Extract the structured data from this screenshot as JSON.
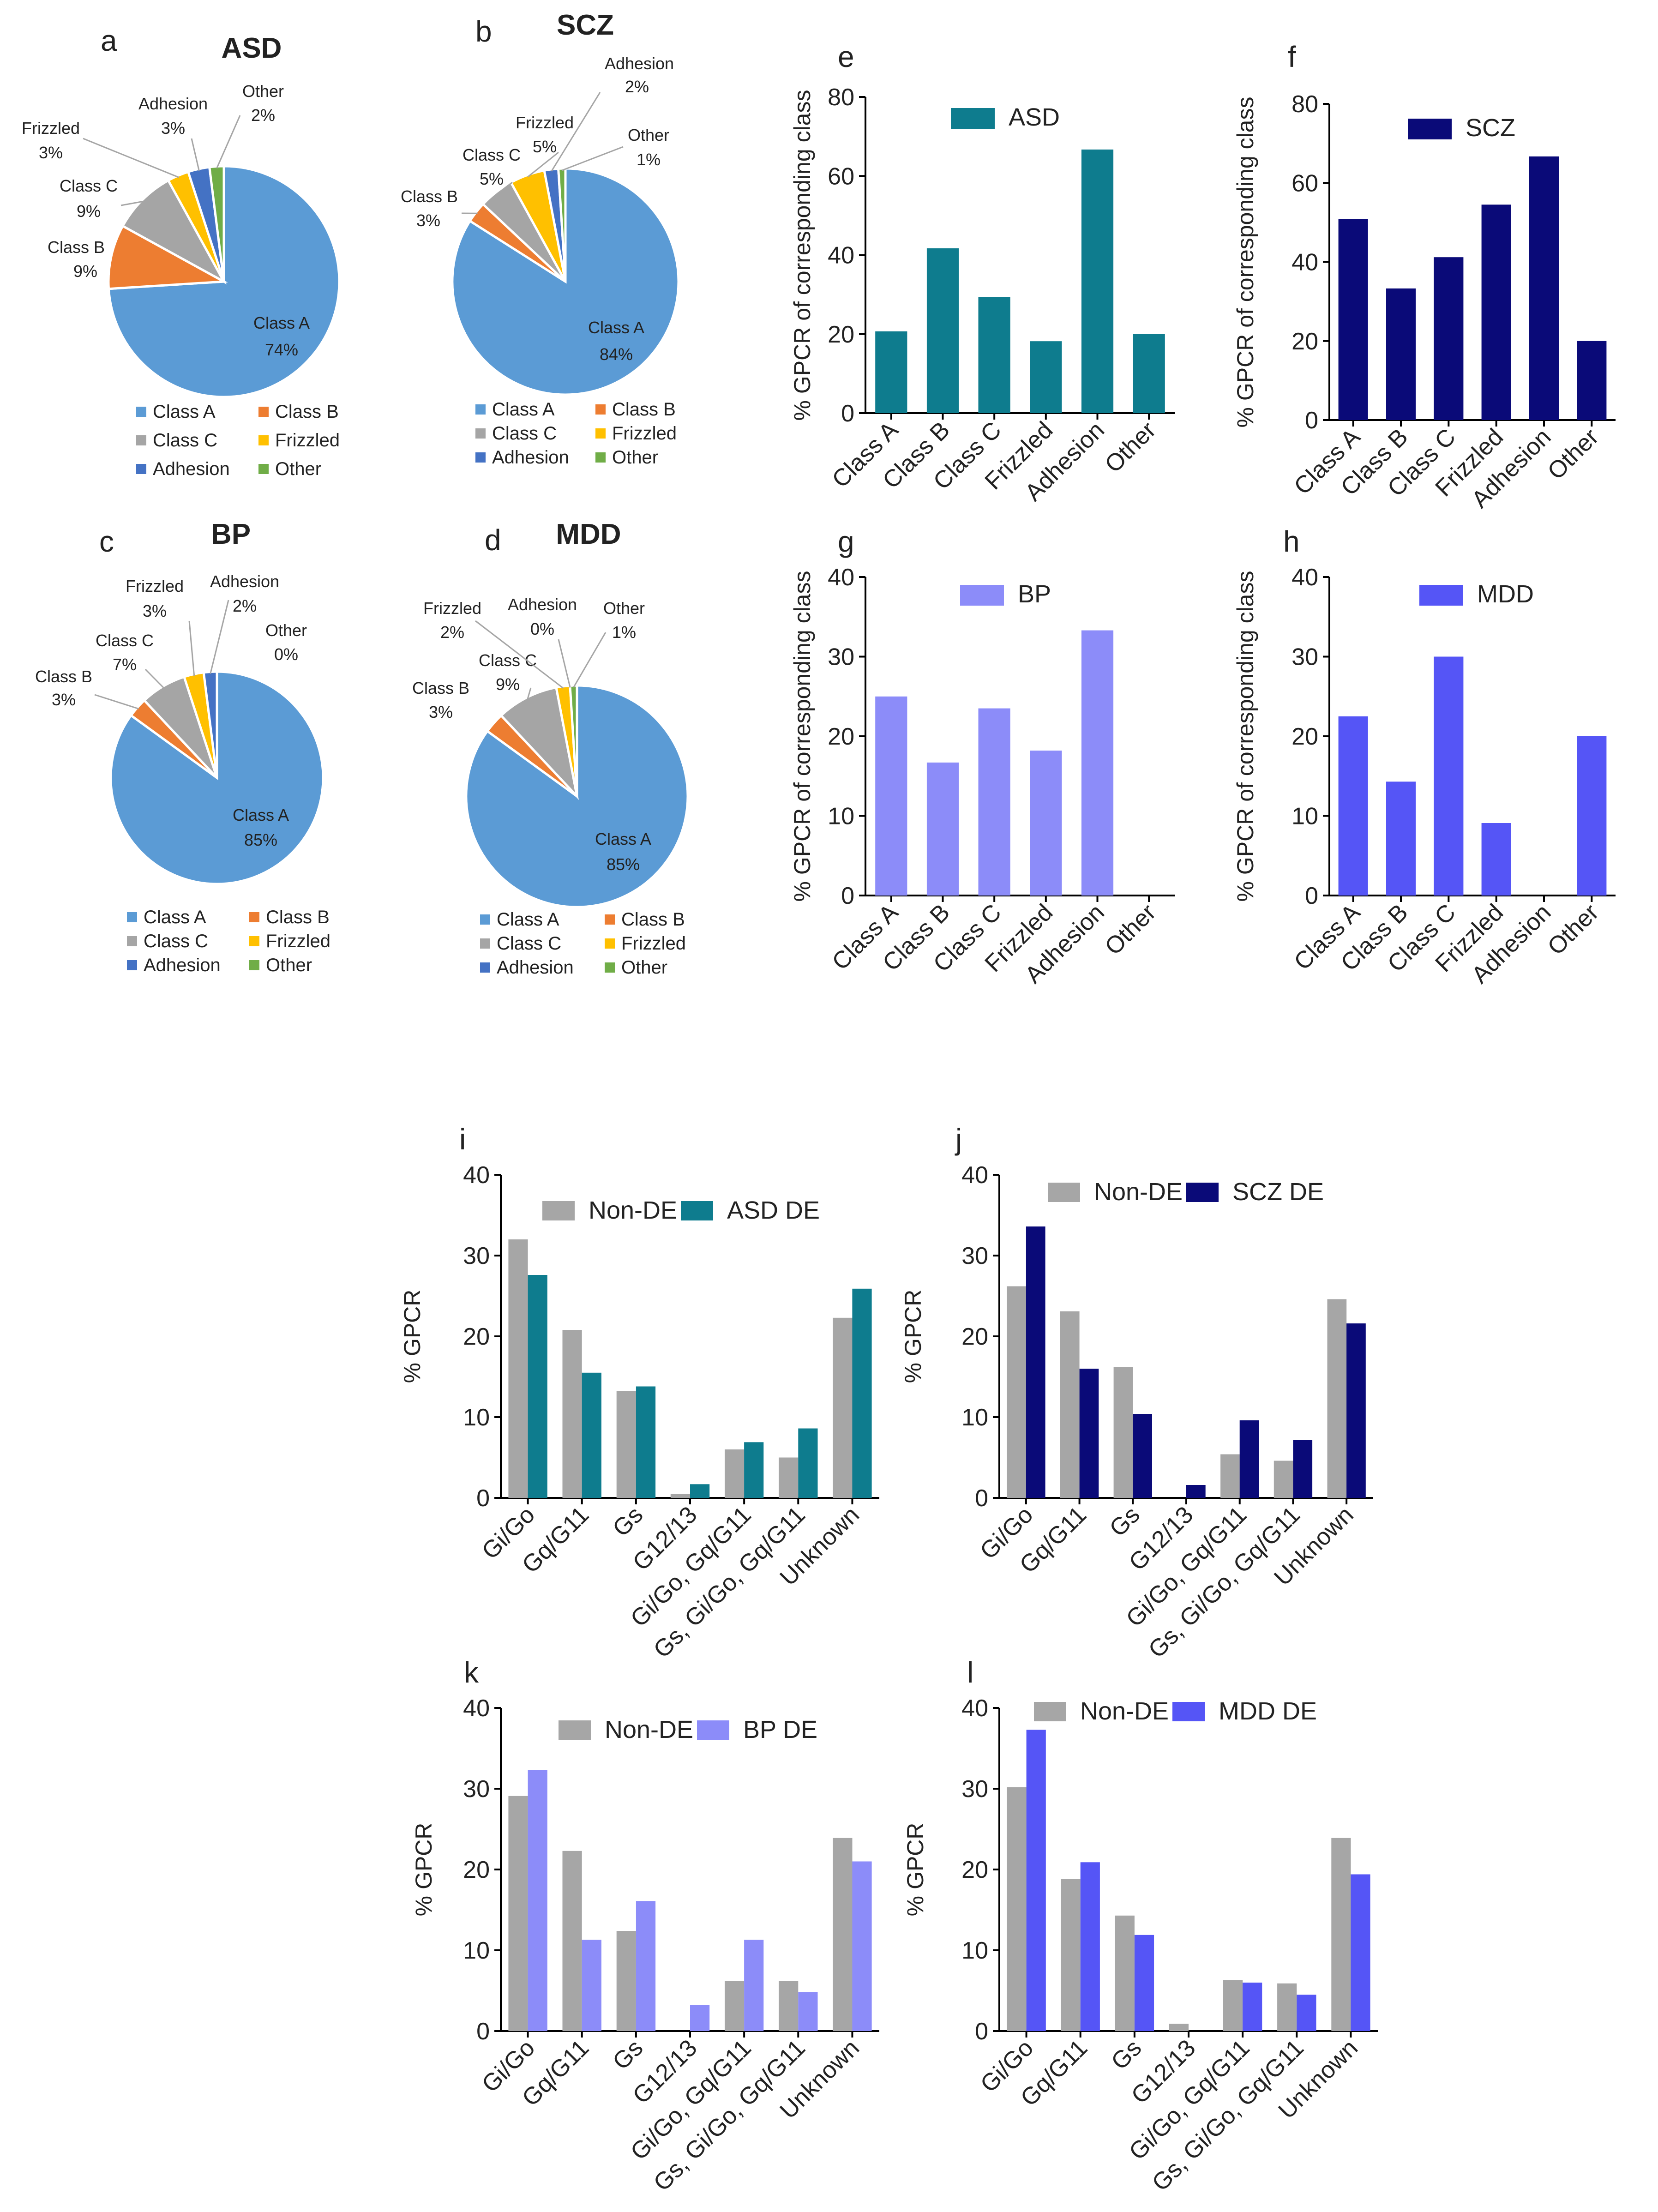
{
  "class_colors": {
    "Class A": "#5B9BD5",
    "Class B": "#ED7D31",
    "Class C": "#A5A5A5",
    "Frizzled": "#FFC000",
    "Adhesion": "#4472C4",
    "Other": "#70AD47"
  },
  "nonde_color": "#A6A6A6",
  "chart_data": [
    {
      "panel": "a",
      "type": "pie",
      "title": "ASD",
      "slices": [
        {
          "label": "Class A",
          "value": 74,
          "pct_text": "74%"
        },
        {
          "label": "Class B",
          "value": 9,
          "pct_text": "9%"
        },
        {
          "label": "Class C",
          "value": 9,
          "pct_text": "9%"
        },
        {
          "label": "Frizzled",
          "value": 3,
          "pct_text": "3%"
        },
        {
          "label": "Adhesion",
          "value": 3,
          "pct_text": "3%"
        },
        {
          "label": "Other",
          "value": 2,
          "pct_text": "2%"
        }
      ],
      "legend": [
        "Class A",
        "Class B",
        "Class C",
        "Frizzled",
        "Adhesion",
        "Other"
      ]
    },
    {
      "panel": "b",
      "type": "pie",
      "title": "SCZ",
      "slices": [
        {
          "label": "Class A",
          "value": 84,
          "pct_text": "84%"
        },
        {
          "label": "Class B",
          "value": 3,
          "pct_text": "3%"
        },
        {
          "label": "Class C",
          "value": 5,
          "pct_text": "5%"
        },
        {
          "label": "Frizzled",
          "value": 5,
          "pct_text": "5%"
        },
        {
          "label": "Adhesion",
          "value": 2,
          "pct_text": "2%"
        },
        {
          "label": "Other",
          "value": 1,
          "pct_text": "1%"
        }
      ],
      "legend": [
        "Class A",
        "Class B",
        "Class C",
        "Frizzled",
        "Adhesion",
        "Other"
      ]
    },
    {
      "panel": "c",
      "type": "pie",
      "title": "BP",
      "slices": [
        {
          "label": "Class A",
          "value": 85,
          "pct_text": "85%"
        },
        {
          "label": "Class B",
          "value": 3,
          "pct_text": "3%"
        },
        {
          "label": "Class C",
          "value": 7,
          "pct_text": "7%"
        },
        {
          "label": "Frizzled",
          "value": 3,
          "pct_text": "3%"
        },
        {
          "label": "Adhesion",
          "value": 2,
          "pct_text": "2%"
        },
        {
          "label": "Other",
          "value": 0,
          "pct_text": "0%"
        }
      ],
      "legend": [
        "Class A",
        "Class B",
        "Class C",
        "Frizzled",
        "Adhesion",
        "Other"
      ]
    },
    {
      "panel": "d",
      "type": "pie",
      "title": "MDD",
      "slices": [
        {
          "label": "Class A",
          "value": 85,
          "pct_text": "85%"
        },
        {
          "label": "Class B",
          "value": 3,
          "pct_text": "3%"
        },
        {
          "label": "Class C",
          "value": 9,
          "pct_text": "9%"
        },
        {
          "label": "Frizzled",
          "value": 2,
          "pct_text": "2%"
        },
        {
          "label": "Adhesion",
          "value": 0,
          "pct_text": "0%"
        },
        {
          "label": "Other",
          "value": 1,
          "pct_text": "1%"
        }
      ],
      "legend": [
        "Class A",
        "Class B",
        "Class C",
        "Frizzled",
        "Adhesion",
        "Other"
      ]
    },
    {
      "panel": "e",
      "type": "bar",
      "legend": "ASD",
      "color": "#0E7C8E",
      "categories": [
        "Class A",
        "Class B",
        "Class C",
        "Frizzled",
        "Adhesion",
        "Other"
      ],
      "values": [
        20.7,
        41.7,
        29.4,
        18.2,
        66.7,
        20
      ],
      "ylabel": "% GPCR of corresponding class",
      "ylim": [
        0,
        80
      ],
      "yticks": [
        0,
        20,
        40,
        60,
        80
      ]
    },
    {
      "panel": "f",
      "type": "bar",
      "legend": "SCZ",
      "color": "#0A0A78",
      "categories": [
        "Class A",
        "Class B",
        "Class C",
        "Frizzled",
        "Adhesion",
        "Other"
      ],
      "values": [
        50.8,
        33.3,
        41.2,
        54.5,
        66.7,
        20
      ],
      "ylabel": "% GPCR of corresponding class",
      "ylim": [
        0,
        80
      ],
      "yticks": [
        0,
        20,
        40,
        60,
        80
      ]
    },
    {
      "panel": "g",
      "type": "bar",
      "legend": "BP",
      "color": "#8C8CF9",
      "categories": [
        "Class A",
        "Class B",
        "Class C",
        "Frizzled",
        "Adhesion",
        "Other"
      ],
      "values": [
        25,
        16.7,
        23.5,
        18.2,
        33.3,
        0
      ],
      "ylabel": "% GPCR of corresponding class",
      "ylim": [
        0,
        40
      ],
      "yticks": [
        0,
        10,
        20,
        30,
        40
      ]
    },
    {
      "panel": "h",
      "type": "bar",
      "legend": "MDD",
      "color": "#5555F6",
      "categories": [
        "Class A",
        "Class B",
        "Class C",
        "Frizzled",
        "Adhesion",
        "Other"
      ],
      "values": [
        22.5,
        14.3,
        30,
        9.1,
        0,
        20
      ],
      "ylabel": "% GPCR of corresponding class",
      "ylim": [
        0,
        40
      ],
      "yticks": [
        0,
        10,
        20,
        30,
        40
      ]
    },
    {
      "panel": "i",
      "type": "bar",
      "categories": [
        "Gi/Go",
        "Gq/G11",
        "Gs",
        "G12/13",
        "Gi/Go, Gq/G11",
        "Gs, Gi/Go, Gq/G11",
        "Unknown"
      ],
      "series": [
        {
          "name": "Non-DE",
          "color": "#A6A6A6",
          "values": [
            32,
            20.8,
            13.2,
            0.5,
            6,
            5,
            22.3
          ]
        },
        {
          "name": "ASD DE",
          "color": "#0E7C8E",
          "values": [
            27.6,
            15.5,
            13.8,
            1.7,
            6.9,
            8.6,
            25.9
          ]
        }
      ],
      "ylabel": "% GPCR",
      "ylim": [
        0,
        40
      ],
      "yticks": [
        0,
        10,
        20,
        30,
        40
      ]
    },
    {
      "panel": "j",
      "type": "bar",
      "categories": [
        "Gi/Go",
        "Gq/G11",
        "Gs",
        "G12/13",
        "Gi/Go, Gq/G11",
        "Gs, Gi/Go, Gq/G11",
        "Unknown"
      ],
      "series": [
        {
          "name": "Non-DE",
          "color": "#A6A6A6",
          "values": [
            26.2,
            23.1,
            16.2,
            0,
            5.4,
            4.6,
            24.6
          ]
        },
        {
          "name": "SCZ DE",
          "color": "#0A0A78",
          "values": [
            33.6,
            16,
            10.4,
            1.6,
            9.6,
            7.2,
            21.6
          ]
        }
      ],
      "ylabel": "% GPCR",
      "ylim": [
        0,
        40
      ],
      "yticks": [
        0,
        10,
        20,
        30,
        40
      ]
    },
    {
      "panel": "k",
      "type": "bar",
      "categories": [
        "Gi/Go",
        "Gq/G11",
        "Gs",
        "G12/13",
        "Gi/Go, Gq/G11",
        "Gs, Gi/Go, Gq/G11",
        "Unknown"
      ],
      "series": [
        {
          "name": "Non-DE",
          "color": "#A6A6A6",
          "values": [
            29.1,
            22.3,
            12.4,
            0,
            6.2,
            6.2,
            23.9
          ]
        },
        {
          "name": "BP DE",
          "color": "#8C8CF9",
          "values": [
            32.3,
            11.3,
            16.1,
            3.2,
            11.3,
            4.8,
            21
          ]
        }
      ],
      "ylabel": "% GPCR",
      "ylim": [
        0,
        40
      ],
      "yticks": [
        0,
        10,
        20,
        30,
        40
      ]
    },
    {
      "panel": "l",
      "type": "bar",
      "categories": [
        "Gi/Go",
        "Gq/G11",
        "Gs",
        "G12/13",
        "Gi/Go, Gq/G11",
        "Gs, Gi/Go, Gq/G11",
        "Unknown"
      ],
      "series": [
        {
          "name": "Non-DE",
          "color": "#A6A6A6",
          "values": [
            30.2,
            18.8,
            14.3,
            0.9,
            6.3,
            5.9,
            23.9
          ]
        },
        {
          "name": "MDD DE",
          "color": "#5555F6",
          "values": [
            37.3,
            20.9,
            11.9,
            0,
            6,
            4.5,
            19.4
          ]
        }
      ],
      "ylabel": "% GPCR",
      "ylim": [
        0,
        40
      ],
      "yticks": [
        0,
        10,
        20,
        30,
        40
      ]
    }
  ]
}
